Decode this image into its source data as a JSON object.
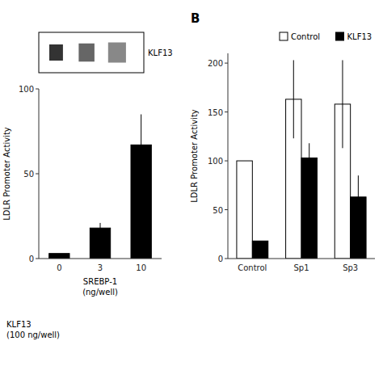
{
  "chart_data": [
    {
      "type": "bar",
      "annotations": [
        "KLF13",
        "KLF13\n(100 ng/well)"
      ],
      "x_label": "SREBP-1\n(ng/well)",
      "y_label": "LDLR Promoter Activity",
      "categories": [
        "0",
        "3",
        "10"
      ],
      "values": [
        3,
        18,
        67
      ],
      "errors": [
        0,
        3,
        18
      ],
      "color": "#000000",
      "ylim": [
        0,
        100
      ],
      "yticks": [
        0,
        50,
        100
      ]
    },
    {
      "type": "bar",
      "annotations": [
        "B"
      ],
      "y_label": "LDLR Promoter Activity",
      "categories": [
        "Control",
        "Sp1",
        "Sp3"
      ],
      "series": [
        {
          "name": "Control",
          "color": "#ffffff",
          "values": [
            100,
            163,
            158
          ],
          "errors": [
            0,
            40,
            45
          ]
        },
        {
          "name": "KLF13",
          "color": "#000000",
          "values": [
            18,
            103,
            63
          ],
          "errors": [
            0,
            15,
            22
          ]
        }
      ],
      "ylim": [
        0,
        210
      ],
      "yticks": [
        0,
        50,
        100,
        150,
        200
      ],
      "legend": "upper right"
    }
  ]
}
